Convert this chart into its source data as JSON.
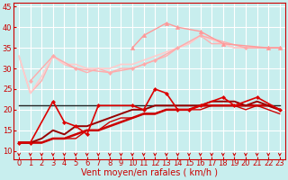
{
  "title": "",
  "xlabel": "Vent moyen/en rafales ( km/h )",
  "xlim": [
    -0.5,
    23.5
  ],
  "ylim": [
    8,
    46
  ],
  "yticks": [
    10,
    15,
    20,
    25,
    30,
    35,
    40,
    45
  ],
  "xticks": [
    0,
    1,
    2,
    3,
    4,
    5,
    6,
    7,
    8,
    9,
    10,
    11,
    12,
    13,
    14,
    15,
    16,
    17,
    18,
    19,
    20,
    21,
    22,
    23
  ],
  "bg_color": "#c8eeee",
  "grid_color": "#ffffff",
  "series": [
    {
      "x": [
        0,
        1,
        2,
        3,
        4,
        5,
        6,
        7,
        8,
        9,
        10,
        11,
        12,
        13,
        14,
        15,
        16,
        17,
        18,
        19,
        20,
        21,
        22,
        23
      ],
      "y": [
        33,
        24,
        27,
        33,
        31,
        30,
        29,
        30,
        29,
        30,
        30,
        31,
        32,
        33,
        35,
        36,
        38,
        36,
        36,
        35,
        35,
        35,
        35,
        35
      ],
      "color": "#ffb0b0",
      "lw": 1.0,
      "marker": null,
      "ms": 2,
      "zorder": 2
    },
    {
      "x": [
        0,
        1,
        2,
        3,
        4,
        5,
        6,
        7,
        8,
        9,
        10,
        11,
        12,
        13,
        14,
        15,
        16,
        17,
        18,
        19,
        20,
        21,
        22,
        23
      ],
      "y": [
        33,
        24,
        28,
        33,
        31,
        31,
        30,
        30,
        30,
        31,
        31,
        32,
        33,
        34,
        35,
        36,
        38,
        37,
        36,
        35,
        35,
        35,
        35,
        35
      ],
      "color": "#ffcccc",
      "lw": 1.2,
      "marker": null,
      "ms": 2,
      "zorder": 2
    },
    {
      "x": [
        1,
        3,
        5,
        8,
        10,
        11,
        12,
        14,
        16,
        20,
        22,
        23
      ],
      "y": [
        27,
        33,
        30,
        29,
        30,
        31,
        32,
        35,
        38,
        35,
        35,
        35
      ],
      "color": "#ffaaaa",
      "lw": 1.0,
      "marker": "D",
      "ms": 2,
      "zorder": 3
    },
    {
      "x": [
        10,
        11,
        13,
        14,
        16,
        18,
        22,
        23
      ],
      "y": [
        35,
        38,
        41,
        40,
        39,
        36,
        35,
        35
      ],
      "color": "#ff9999",
      "lw": 1.0,
      "marker": "^",
      "ms": 3,
      "zorder": 3
    },
    {
      "x": [
        0,
        1,
        3,
        4,
        5,
        6,
        7,
        10,
        11,
        12,
        13,
        14,
        15,
        16,
        18,
        19,
        21,
        23
      ],
      "y": [
        12,
        12,
        22,
        17,
        16,
        14,
        21,
        21,
        20,
        25,
        24,
        20,
        20,
        21,
        23,
        21,
        23,
        20
      ],
      "color": "#dd0000",
      "lw": 1.2,
      "marker": "D",
      "ms": 2,
      "zorder": 4
    },
    {
      "x": [
        0,
        1,
        2,
        3,
        4,
        5,
        6,
        7,
        8,
        9,
        10,
        11,
        12,
        13,
        14,
        15,
        16,
        17,
        18,
        19,
        20,
        21,
        22,
        23
      ],
      "y": [
        12,
        12,
        12,
        13,
        13,
        14,
        15,
        15,
        16,
        17,
        18,
        19,
        19,
        20,
        20,
        20,
        21,
        21,
        21,
        21,
        21,
        21,
        21,
        20
      ],
      "color": "#cc0000",
      "lw": 1.8,
      "marker": null,
      "ms": 2,
      "zorder": 3
    },
    {
      "x": [
        0,
        1,
        2,
        3,
        4,
        5,
        6,
        7,
        8,
        9,
        10,
        11,
        12,
        13,
        14,
        15,
        16,
        17,
        18,
        19,
        20,
        21,
        22,
        23
      ],
      "y": [
        12,
        12,
        13,
        15,
        14,
        16,
        16,
        17,
        18,
        19,
        20,
        20,
        21,
        21,
        21,
        21,
        21,
        22,
        22,
        22,
        21,
        22,
        21,
        20
      ],
      "color": "#990000",
      "lw": 1.4,
      "marker": null,
      "ms": 2,
      "zorder": 3
    },
    {
      "x": [
        0,
        1,
        2,
        3,
        4,
        5,
        6,
        7,
        8,
        9,
        10,
        11,
        12,
        13,
        14,
        15,
        16,
        17,
        18,
        19,
        20,
        21,
        22,
        23
      ],
      "y": [
        12,
        12,
        12,
        13,
        13,
        13,
        15,
        15,
        17,
        18,
        18,
        19,
        19,
        20,
        20,
        20,
        20,
        21,
        21,
        21,
        20,
        21,
        20,
        19
      ],
      "color": "#cc0000",
      "lw": 1.0,
      "marker": null,
      "ms": 2,
      "zorder": 2
    },
    {
      "x": [
        0,
        1,
        2,
        3,
        4,
        5,
        6,
        7,
        8,
        9,
        10,
        11,
        12,
        13,
        14,
        15,
        16,
        17,
        18,
        19,
        20,
        21,
        22,
        23
      ],
      "y": [
        21,
        21,
        21,
        21,
        21,
        21,
        21,
        21,
        21,
        21,
        21,
        21,
        21,
        21,
        21,
        21,
        21,
        21,
        21,
        21,
        21,
        21,
        21,
        21
      ],
      "color": "#222222",
      "lw": 1.0,
      "marker": null,
      "ms": 2,
      "zorder": 2
    }
  ],
  "arrow_color": "#cc0000",
  "xlabel_color": "#cc0000",
  "xlabel_fontsize": 7,
  "tick_color": "#cc0000",
  "tick_fontsize": 6
}
